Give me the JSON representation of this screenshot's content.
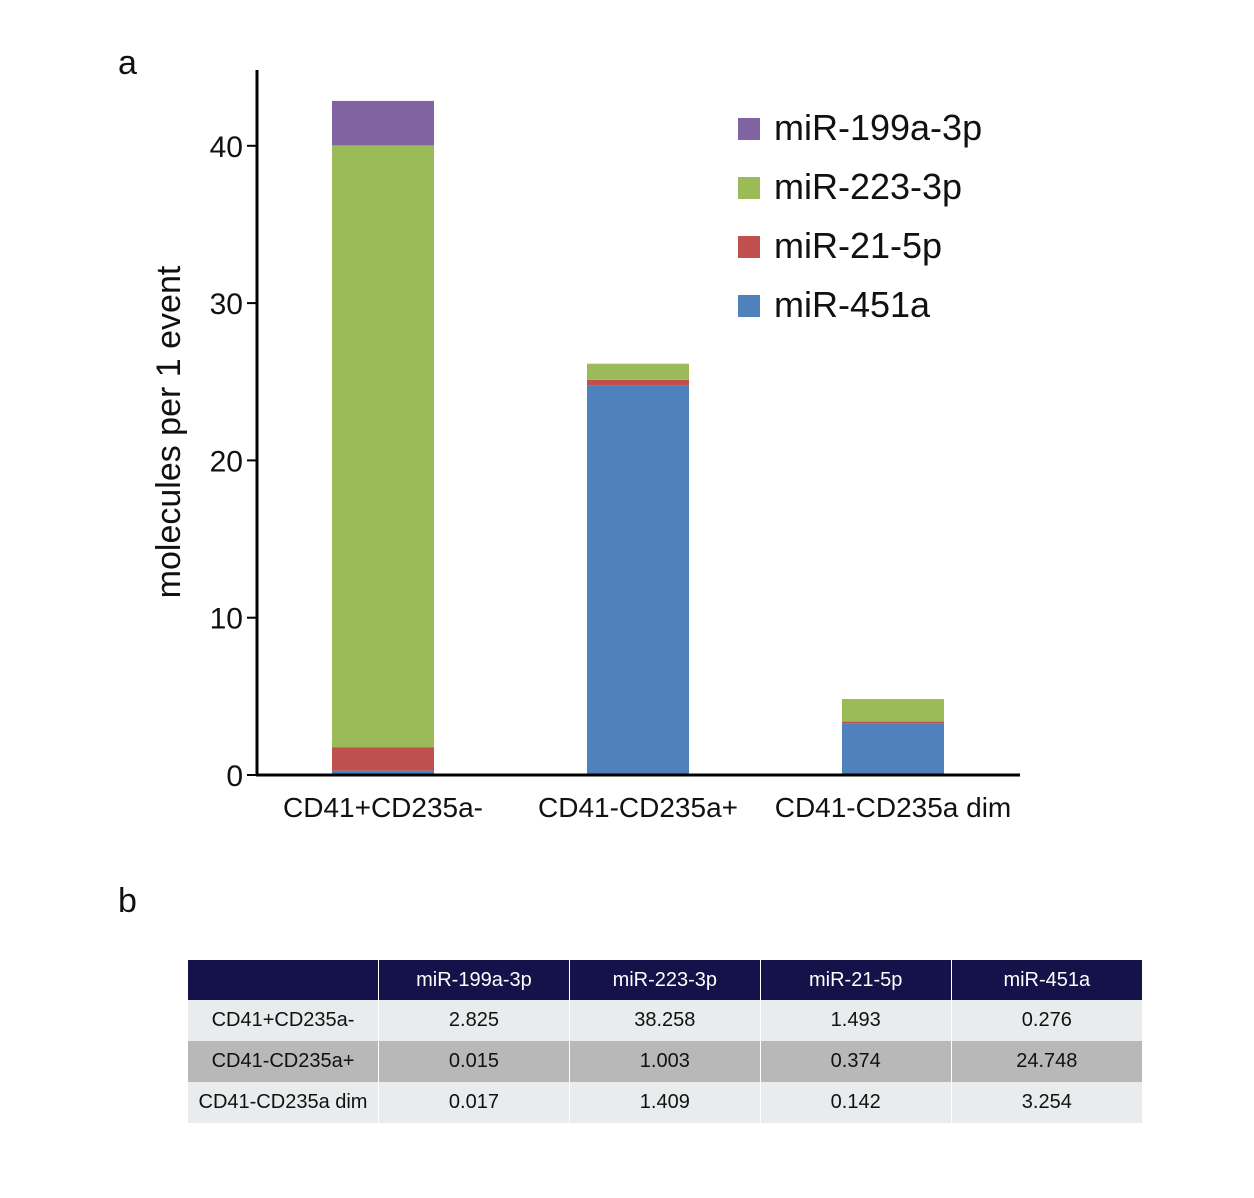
{
  "panels": {
    "a": "a",
    "b": "b"
  },
  "chart_data": {
    "type": "bar",
    "stacked": true,
    "categories": [
      "CD41+CD235a-",
      "CD41-CD235a+",
      "CD41-CD235a dim"
    ],
    "series": [
      {
        "name": "miR-451a",
        "color": "#4f81bd",
        "values": [
          0.276,
          24.748,
          3.254
        ]
      },
      {
        "name": "miR-21-5p",
        "color": "#c0504d",
        "values": [
          1.493,
          0.374,
          0.142
        ]
      },
      {
        "name": "miR-223-3p",
        "color": "#9bbb59",
        "values": [
          38.258,
          1.003,
          1.409
        ]
      },
      {
        "name": "miR-199a-3p",
        "color": "#8064a2",
        "values": [
          2.825,
          0.015,
          0.017
        ]
      }
    ],
    "legend_order": [
      "miR-199a-3p",
      "miR-223-3p",
      "miR-21-5p",
      "miR-451a"
    ],
    "legend_position": "top-right",
    "ylabel": "molecules per 1 event",
    "xlabel": "",
    "ylim": [
      0,
      45
    ],
    "yticks": [
      0,
      10,
      20,
      30,
      40
    ],
    "grid": false
  },
  "table": {
    "header": [
      "",
      "miR-199a-3p",
      "miR-223-3p",
      "miR-21-5p",
      "miR-451a"
    ],
    "rows": [
      [
        "CD41+CD235a-",
        "2.825",
        "38.258",
        "1.493",
        "0.276"
      ],
      [
        "CD41-CD235a+",
        "0.015",
        "1.003",
        "0.374",
        "24.748"
      ],
      [
        "CD41-CD235a dim",
        "0.017",
        "1.409",
        "0.142",
        "3.254"
      ]
    ]
  }
}
